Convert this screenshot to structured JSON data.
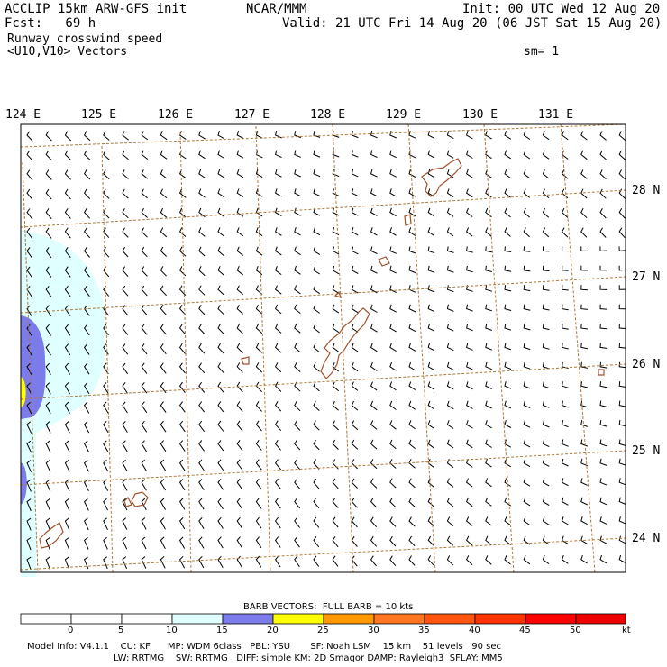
{
  "header": {
    "model_title": "ACCLIP 15km ARW-GFS init",
    "forecast": "Fcst:   69 h",
    "org": "NCAR/MMM",
    "init": "Init: 00 UTC Wed 12 Aug 20",
    "valid": "Valid: 21 UTC Fri 14 Aug 20 (06 JST Sat 15 Aug 20)",
    "field": "Runway crosswind speed",
    "vectors": "<U10,V10> Vectors",
    "smoothing": "sm= 1"
  },
  "map": {
    "lon_labels": [
      "124 E",
      "125 E",
      "126 E",
      "127 E",
      "128 E",
      "129 E",
      "130 E",
      "131 E"
    ],
    "lat_labels": [
      "28 N",
      "27 N",
      "26 N",
      "25 N",
      "24 N"
    ],
    "coastline_color": "#a0522d",
    "grid_color": "#b07a3a"
  },
  "legend": {
    "barb_note": "BARB VECTORS:  FULL BARB = 10 kts",
    "ticks": [
      "0",
      "5",
      "10",
      "15",
      "20",
      "25",
      "30",
      "35",
      "40",
      "45",
      "50"
    ],
    "unit": "kt",
    "colors": [
      "#ffffff",
      "#ffffff",
      "#ffffff",
      "#e0ffff",
      "#7b7bea",
      "#ffff00",
      "#ff9900",
      "#ff7722",
      "#ff5511",
      "#ff3300",
      "#ff0000",
      "#ee0000"
    ]
  },
  "footer": {
    "line1": "Model Info: V4.1.1    CU: KF      MP: WDM 6class   PBL: YSU       SF: Noah LSM    15 km    51 levels   90 sec",
    "line2": "LW: RRTMG    SW: RRTMG   DIFF: simple KM: 2D Smagor DAMP: Rayleigh3  SFLAY: MM5"
  }
}
